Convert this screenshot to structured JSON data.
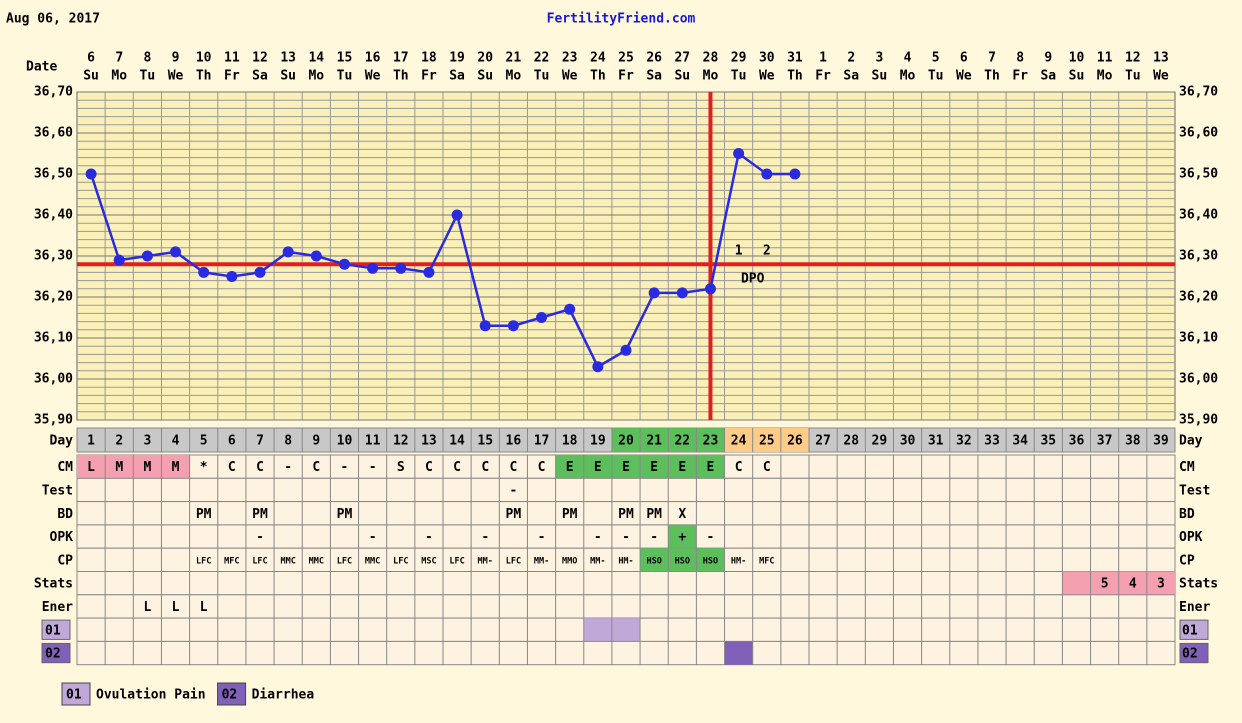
{
  "chart_data": {
    "type": "line",
    "header_date": "Aug 06, 2017",
    "site": "FertilityFriend.com",
    "date_label": "Date",
    "dates": [
      6,
      7,
      8,
      9,
      10,
      11,
      12,
      13,
      14,
      15,
      16,
      17,
      18,
      19,
      20,
      21,
      22,
      23,
      24,
      25,
      26,
      27,
      28,
      29,
      30,
      31,
      1,
      2,
      3,
      4,
      5,
      6,
      7,
      8,
      9,
      10,
      11,
      12,
      13
    ],
    "weekdays": [
      "Su",
      "Mo",
      "Tu",
      "We",
      "Th",
      "Fr",
      "Sa",
      "Su",
      "Mo",
      "Tu",
      "We",
      "Th",
      "Fr",
      "Sa",
      "Su",
      "Mo",
      "Tu",
      "We",
      "Th",
      "Fr",
      "Sa",
      "Su",
      "Mo",
      "Tu",
      "We",
      "Th",
      "Fr",
      "Sa",
      "Su",
      "Mo",
      "Tu",
      "We",
      "Th",
      "Fr",
      "Sa",
      "Su",
      "Mo",
      "Tu",
      "We"
    ],
    "x": [
      1,
      2,
      3,
      4,
      5,
      6,
      7,
      8,
      9,
      10,
      11,
      12,
      13,
      14,
      15,
      16,
      17,
      18,
      19,
      20,
      21,
      22,
      23,
      24,
      25,
      26,
      27,
      28,
      29,
      30,
      31,
      32,
      33,
      34,
      35,
      36,
      37,
      38,
      39
    ],
    "series": [
      {
        "color": "#2a2ae0",
        "values": [
          36.5,
          36.29,
          36.3,
          36.31,
          36.26,
          36.25,
          36.26,
          36.31,
          36.3,
          36.28,
          36.27,
          36.27,
          36.26,
          36.4,
          36.13,
          36.13,
          36.15,
          36.17,
          36.03,
          36.07,
          36.21,
          36.21,
          36.22,
          36.55,
          36.5,
          36.5,
          null,
          null,
          null,
          null,
          null,
          null,
          null,
          null,
          null,
          null,
          null,
          null,
          null
        ]
      }
    ],
    "ylim": [
      35.9,
      36.7
    ],
    "yticks": [
      {
        "value": 35.9,
        "label": "35,90"
      },
      {
        "value": 36.0,
        "label": "36,00"
      },
      {
        "value": 36.1,
        "label": "36,10"
      },
      {
        "value": 36.2,
        "label": "36,20"
      },
      {
        "value": 36.3,
        "label": "36,30"
      },
      {
        "value": 36.4,
        "label": "36,40"
      },
      {
        "value": 36.5,
        "label": "36,50"
      },
      {
        "value": 36.6,
        "label": "36,60"
      },
      {
        "value": 36.7,
        "label": "36,70"
      }
    ],
    "grid": true,
    "grid_step": 0.02,
    "coverline": 36.28,
    "ovulation_day": 23,
    "marker_color": "#e02020",
    "dpo_values": [
      1,
      2
    ],
    "dpo_label": "DPO",
    "rows": [
      {
        "label": "Day",
        "fill": "#c8c8c8",
        "cells": [
          {
            "day": 20,
            "fill": "#5cbf5c"
          },
          {
            "day": 21,
            "fill": "#5cbf5c"
          },
          {
            "day": 22,
            "fill": "#5cbf5c"
          },
          {
            "day": 23,
            "fill": "#5cbf5c"
          },
          {
            "day": 24,
            "fill": "#ffcc88"
          },
          {
            "day": 25,
            "fill": "#ffcc88"
          },
          {
            "day": 26,
            "fill": "#ffcc88"
          }
        ]
      },
      {
        "label": "CM",
        "cells": [
          {
            "day": 1,
            "text": "L",
            "fill": "#f4a0b0"
          },
          {
            "day": 2,
            "text": "M",
            "fill": "#f4a0b0"
          },
          {
            "day": 3,
            "text": "M",
            "fill": "#f4a0b0"
          },
          {
            "day": 4,
            "text": "M",
            "fill": "#f4a0b0"
          },
          {
            "day": 5,
            "text": "*"
          },
          {
            "day": 6,
            "text": "C"
          },
          {
            "day": 7,
            "text": "C"
          },
          {
            "day": 8,
            "text": "-"
          },
          {
            "day": 9,
            "text": "C"
          },
          {
            "day": 10,
            "text": "-"
          },
          {
            "day": 11,
            "text": "-"
          },
          {
            "day": 12,
            "text": "S"
          },
          {
            "day": 13,
            "text": "C"
          },
          {
            "day": 14,
            "text": "C"
          },
          {
            "day": 15,
            "text": "C"
          },
          {
            "day": 16,
            "text": "C"
          },
          {
            "day": 17,
            "text": "C"
          },
          {
            "day": 18,
            "text": "E",
            "fill": "#5cbf5c"
          },
          {
            "day": 19,
            "text": "E",
            "fill": "#5cbf5c"
          },
          {
            "day": 20,
            "text": "E",
            "fill": "#5cbf5c"
          },
          {
            "day": 21,
            "text": "E",
            "fill": "#5cbf5c"
          },
          {
            "day": 22,
            "text": "E",
            "fill": "#5cbf5c"
          },
          {
            "day": 23,
            "text": "E",
            "fill": "#5cbf5c"
          },
          {
            "day": 24,
            "text": "C"
          },
          {
            "day": 25,
            "text": "C"
          }
        ]
      },
      {
        "label": "Test",
        "cells": [
          {
            "day": 16,
            "text": "-"
          }
        ]
      },
      {
        "label": "BD",
        "cells": [
          {
            "day": 5,
            "text": "PM"
          },
          {
            "day": 7,
            "text": "PM"
          },
          {
            "day": 10,
            "text": "PM"
          },
          {
            "day": 16,
            "text": "PM"
          },
          {
            "day": 18,
            "text": "PM"
          },
          {
            "day": 20,
            "text": "PM"
          },
          {
            "day": 21,
            "text": "PM"
          },
          {
            "day": 22,
            "text": "X"
          }
        ]
      },
      {
        "label": "OPK",
        "cells": [
          {
            "day": 7,
            "text": "-"
          },
          {
            "day": 11,
            "text": "-"
          },
          {
            "day": 13,
            "text": "-"
          },
          {
            "day": 15,
            "text": "-"
          },
          {
            "day": 17,
            "text": "-"
          },
          {
            "day": 19,
            "text": "-"
          },
          {
            "day": 20,
            "text": "-"
          },
          {
            "day": 21,
            "text": "-"
          },
          {
            "day": 22,
            "text": "+",
            "fill": "#5cbf5c"
          },
          {
            "day": 23,
            "text": "-"
          }
        ]
      },
      {
        "label": "CP",
        "small": true,
        "cells": [
          {
            "day": 5,
            "text": "LFC"
          },
          {
            "day": 6,
            "text": "MFC"
          },
          {
            "day": 7,
            "text": "LFC"
          },
          {
            "day": 8,
            "text": "MMC"
          },
          {
            "day": 9,
            "text": "MMC"
          },
          {
            "day": 10,
            "text": "LFC"
          },
          {
            "day": 11,
            "text": "MMC"
          },
          {
            "day": 12,
            "text": "LFC"
          },
          {
            "day": 13,
            "text": "MSC"
          },
          {
            "day": 14,
            "text": "LFC"
          },
          {
            "day": 15,
            "text": "MM-"
          },
          {
            "day": 16,
            "text": "LFC"
          },
          {
            "day": 17,
            "text": "MM-"
          },
          {
            "day": 18,
            "text": "MMO"
          },
          {
            "day": 19,
            "text": "MM-"
          },
          {
            "day": 20,
            "text": "HM-"
          },
          {
            "day": 21,
            "text": "HSO",
            "fill": "#5cbf5c"
          },
          {
            "day": 22,
            "text": "HSO",
            "fill": "#5cbf5c"
          },
          {
            "day": 23,
            "text": "HSO",
            "fill": "#5cbf5c"
          },
          {
            "day": 24,
            "text": "HM-"
          },
          {
            "day": 25,
            "text": "MFC"
          }
        ]
      },
      {
        "label": "Stats",
        "cells": [
          {
            "day": 36,
            "fill": "#f4a0b0"
          },
          {
            "day": 37,
            "text": "5",
            "fill": "#f4a0b0"
          },
          {
            "day": 38,
            "text": "4",
            "fill": "#f4a0b0"
          },
          {
            "day": 39,
            "text": "3",
            "fill": "#f4a0b0"
          }
        ]
      },
      {
        "label": "Ener",
        "cells": [
          {
            "day": 3,
            "text": "L"
          },
          {
            "day": 4,
            "text": "L"
          },
          {
            "day": 5,
            "text": "L"
          }
        ]
      },
      {
        "label": "01",
        "label_fill": "#c0a8d8",
        "cells": [
          {
            "day": 19,
            "fill": "#c0a8d8"
          },
          {
            "day": 20,
            "fill": "#c0a8d8"
          }
        ]
      },
      {
        "label": "02",
        "label_fill": "#8060b8",
        "cells": [
          {
            "day": 24,
            "fill": "#8060b8"
          }
        ]
      }
    ],
    "legend": [
      {
        "code": "01",
        "label": "Ovulation Pain",
        "color": "#c0a8d8"
      },
      {
        "code": "02",
        "label": "Diarrhea",
        "color": "#8060b8"
      }
    ]
  }
}
